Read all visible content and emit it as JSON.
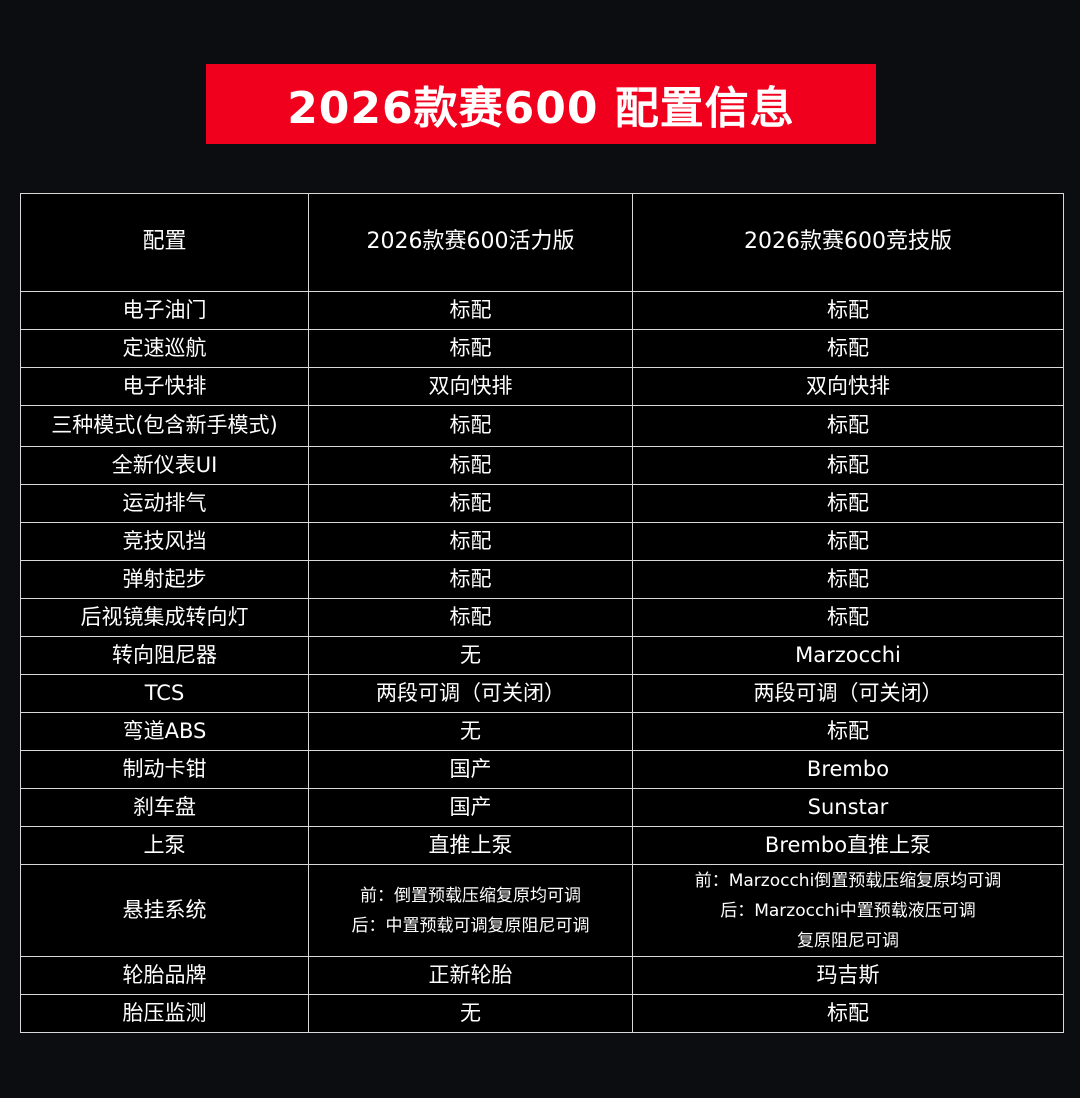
{
  "title": "2026款赛600 配置信息",
  "colors": {
    "banner": "#f0001c",
    "background": "#0b0d10",
    "table": "#000000"
  },
  "table": {
    "headers": [
      "配置",
      "2026款赛600活力版",
      "2026款赛600竞技版"
    ],
    "rows": [
      [
        "电子油门",
        "标配",
        "标配"
      ],
      [
        "定速巡航",
        "标配",
        "标配"
      ],
      [
        "电子快排",
        "双向快排",
        "双向快排"
      ],
      [
        "三种模式(包含新手模式)",
        "标配",
        "标配"
      ],
      [
        "全新仪表UI",
        "标配",
        "标配"
      ],
      [
        "运动排气",
        "标配",
        "标配"
      ],
      [
        "竞技风挡",
        "标配",
        "标配"
      ],
      [
        "弹射起步",
        "标配",
        "标配"
      ],
      [
        "后视镜集成转向灯",
        "标配",
        "标配"
      ],
      [
        "转向阻尼器",
        "无",
        "Marzocchi"
      ],
      [
        "TCS",
        "两段可调（可关闭）",
        "两段可调（可关闭）"
      ],
      [
        "弯道ABS",
        "无",
        "标配"
      ],
      [
        "制动卡钳",
        "国产",
        "Brembo"
      ],
      [
        "刹车盘",
        "国产",
        "Sunstar"
      ],
      [
        "上泵",
        "直推上泵",
        "Brembo直推上泵"
      ],
      [
        "悬挂系统",
        [
          "前：倒置预载压缩复原均可调",
          "后：中置预载可调复原阻尼可调"
        ],
        [
          "前：Marzocchi倒置预载压缩复原均可调",
          "后：Marzocchi中置预载液压可调",
          "复原阻尼可调"
        ]
      ],
      [
        "轮胎品牌",
        "正新轮胎",
        "玛吉斯"
      ],
      [
        "胎压监测",
        "无",
        "标配"
      ]
    ]
  }
}
